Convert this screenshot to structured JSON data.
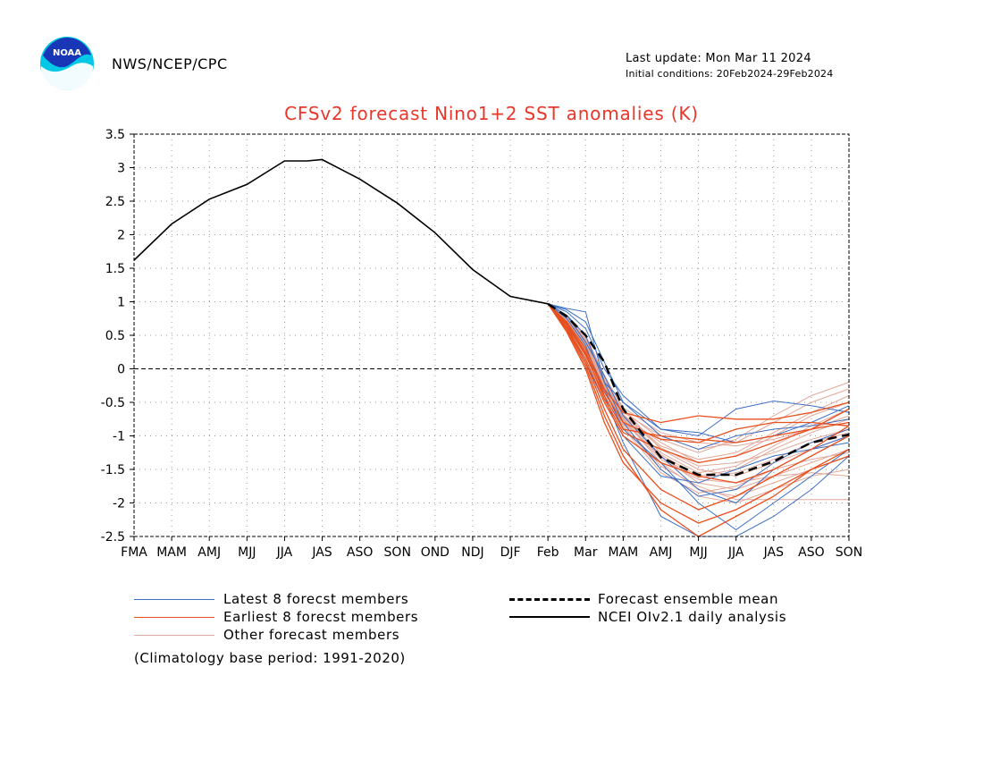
{
  "header": {
    "org": "NWS/NCEP/CPC",
    "last_update": "Last update: Mon Mar 11 2024",
    "initial_conditions": "Initial conditions: 20Feb2024-29Feb2024",
    "logo_text": "NOAA"
  },
  "colors": {
    "title": "#e8372a",
    "latest": "#3e6fc4",
    "earliest": "#e8501e",
    "other": "#e2a89a",
    "analysis": "#000000",
    "mean": "#000000"
  },
  "legend": {
    "latest": "Latest 8 forecst members",
    "earliest": "Earliest 8 forecst members",
    "other": "Other forecast members",
    "mean": "Forecast ensemble mean",
    "analysis": "NCEI OIv2.1 daily analysis"
  },
  "footnote": "(Climatology base period: 1991-2020)",
  "chart_data": {
    "type": "line",
    "title": "CFSv2 forecast Nino1+2 SST anomalies (K)",
    "xlabel": "",
    "ylabel": "",
    "categories": [
      "FMA",
      "MAM",
      "AMJ",
      "MJJ",
      "JJA",
      "JAS",
      "ASO",
      "SON",
      "OND",
      "NDJ",
      "DJF",
      "Feb",
      "Mar",
      "MAM",
      "AMJ",
      "MJJ",
      "JJA",
      "JAS",
      "ASO",
      "SON"
    ],
    "ylim": [
      -2.5,
      3.5
    ],
    "yticks": [
      "3.5",
      "3",
      "2.5",
      "2",
      "1.5",
      "1",
      "0.5",
      "0",
      "-0.5",
      "-1",
      "-1.5",
      "-2",
      "-2.5"
    ],
    "grid": true,
    "analysis": {
      "name": "NCEI OIv2.1 daily analysis",
      "x": [
        0,
        1,
        2,
        3,
        4,
        4.6,
        5,
        6,
        7,
        8,
        9,
        10,
        11
      ],
      "y": [
        1.62,
        2.16,
        2.53,
        2.75,
        3.1,
        3.1,
        3.12,
        2.83,
        2.47,
        2.03,
        1.48,
        1.08,
        0.97
      ]
    },
    "ensemble_mean": {
      "name": "Forecast ensemble mean",
      "x": [
        11,
        11.5,
        12,
        12.5,
        13,
        14,
        15,
        16,
        17,
        18,
        19
      ],
      "y": [
        0.97,
        0.78,
        0.5,
        0.1,
        -0.6,
        -1.32,
        -1.58,
        -1.58,
        -1.38,
        -1.1,
        -0.98
      ]
    },
    "members_x": [
      11,
      11.5,
      12,
      12.5,
      13,
      14,
      15,
      16,
      17,
      18,
      19
    ],
    "latest_members": [
      [
        0.97,
        0.9,
        0.85,
        -0.2,
        -0.5,
        -0.9,
        -1.0,
        -0.6,
        -0.48,
        -0.55,
        -0.65
      ],
      [
        0.97,
        0.8,
        0.4,
        -0.1,
        -0.7,
        -1.3,
        -1.8,
        -2.0,
        -1.5,
        -1.2,
        -1.0
      ],
      [
        0.97,
        0.7,
        0.2,
        -0.3,
        -0.9,
        -1.4,
        -2.0,
        -2.4,
        -2.0,
        -1.6,
        -1.2
      ],
      [
        0.97,
        0.85,
        0.6,
        0.0,
        -0.4,
        -0.9,
        -0.95,
        -1.1,
        -1.0,
        -0.8,
        -0.55
      ],
      [
        0.97,
        0.75,
        0.35,
        -0.4,
        -1.1,
        -2.2,
        -2.5,
        -2.5,
        -2.2,
        -1.8,
        -1.3
      ],
      [
        0.97,
        0.8,
        0.5,
        -0.2,
        -0.8,
        -1.5,
        -1.9,
        -1.8,
        -1.4,
        -1.1,
        -0.9
      ],
      [
        0.97,
        0.65,
        0.1,
        -0.5,
        -1.0,
        -1.6,
        -1.7,
        -1.5,
        -1.3,
        -1.2,
        -1.1
      ],
      [
        0.97,
        0.88,
        0.7,
        0.1,
        -0.5,
        -1.0,
        -1.2,
        -1.0,
        -0.9,
        -0.85,
        -0.75
      ]
    ],
    "earliest_members": [
      [
        0.97,
        0.7,
        0.3,
        -0.3,
        -0.65,
        -0.8,
        -0.7,
        -0.75,
        -0.75,
        -0.65,
        -0.5
      ],
      [
        0.97,
        0.6,
        0.1,
        -0.6,
        -1.2,
        -1.8,
        -2.1,
        -1.9,
        -1.6,
        -1.3,
        -1.0
      ],
      [
        0.97,
        0.65,
        0.2,
        -0.4,
        -0.9,
        -1.0,
        -1.05,
        -1.1,
        -1.0,
        -0.9,
        -0.8
      ],
      [
        0.97,
        0.55,
        0.0,
        -0.8,
        -1.4,
        -2.0,
        -2.3,
        -2.1,
        -1.8,
        -1.5,
        -1.3
      ],
      [
        0.97,
        0.68,
        0.25,
        -0.35,
        -0.8,
        -1.05,
        -1.1,
        -0.9,
        -0.8,
        -0.8,
        -0.85
      ],
      [
        0.97,
        0.58,
        0.05,
        -0.7,
        -1.3,
        -2.1,
        -2.5,
        -2.2,
        -1.9,
        -1.5,
        -1.2
      ],
      [
        0.97,
        0.62,
        0.15,
        -0.5,
        -1.0,
        -1.4,
        -1.6,
        -1.7,
        -1.5,
        -1.2,
        -0.85
      ],
      [
        0.97,
        0.66,
        0.22,
        -0.45,
        -0.95,
        -1.2,
        -1.4,
        -1.3,
        -1.1,
        -0.9,
        -0.6
      ]
    ],
    "other_members": [
      [
        0.97,
        0.75,
        0.4,
        -0.2,
        -0.7,
        -1.1,
        -1.4,
        -1.3,
        -1.0,
        -0.7,
        -0.5
      ],
      [
        0.97,
        0.8,
        0.5,
        -0.1,
        -0.6,
        -1.2,
        -1.5,
        -1.6,
        -1.4,
        -1.2,
        -1.0
      ],
      [
        0.97,
        0.7,
        0.3,
        -0.3,
        -0.8,
        -1.3,
        -1.7,
        -1.8,
        -1.6,
        -1.4,
        -1.2
      ],
      [
        0.97,
        0.72,
        0.35,
        -0.25,
        -0.75,
        -1.4,
        -1.8,
        -1.9,
        -1.7,
        -1.5,
        -1.3
      ],
      [
        0.97,
        0.78,
        0.45,
        -0.15,
        -0.65,
        -1.0,
        -1.2,
        -1.1,
        -0.8,
        -0.5,
        -0.3
      ],
      [
        0.97,
        0.76,
        0.42,
        -0.18,
        -0.68,
        -1.15,
        -1.35,
        -1.25,
        -0.95,
        -0.65,
        -0.4
      ],
      [
        0.97,
        0.68,
        0.28,
        -0.32,
        -0.85,
        -1.5,
        -1.9,
        -2.0,
        -1.8,
        -1.6,
        -1.5
      ],
      [
        0.97,
        0.74,
        0.38,
        -0.22,
        -0.72,
        -1.25,
        -1.55,
        -1.45,
        -1.15,
        -0.85,
        -0.6
      ],
      [
        0.97,
        0.71,
        0.32,
        -0.28,
        -0.78,
        -1.35,
        -1.65,
        -1.7,
        -1.6,
        -1.55,
        -1.6
      ],
      [
        0.97,
        0.77,
        0.44,
        -0.16,
        -0.62,
        -1.05,
        -1.25,
        -1.05,
        -0.7,
        -0.4,
        -0.2
      ],
      [
        0.97,
        0.69,
        0.29,
        -0.31,
        -0.82,
        -1.45,
        -1.75,
        -1.95,
        -1.95,
        -1.95,
        -1.95
      ],
      [
        0.97,
        0.73,
        0.36,
        -0.24,
        -0.74,
        -1.28,
        -1.6,
        -1.5,
        -1.2,
        -0.95,
        -0.75
      ],
      [
        0.97,
        0.79,
        0.48,
        -0.12,
        -0.58,
        -0.95,
        -1.1,
        -1.15,
        -1.05,
        -0.9,
        -0.7
      ],
      [
        0.97,
        0.67,
        0.26,
        -0.34,
        -0.88,
        -1.55,
        -1.85,
        -1.75,
        -1.5,
        -1.35,
        -1.25
      ],
      [
        0.97,
        0.75,
        0.41,
        -0.19,
        -0.7,
        -1.18,
        -1.45,
        -1.4,
        -1.25,
        -1.05,
        -0.9
      ],
      [
        0.97,
        0.72,
        0.34,
        -0.26,
        -0.76,
        -1.32,
        -1.62,
        -1.55,
        -1.35,
        -1.1,
        -0.95
      ]
    ]
  }
}
